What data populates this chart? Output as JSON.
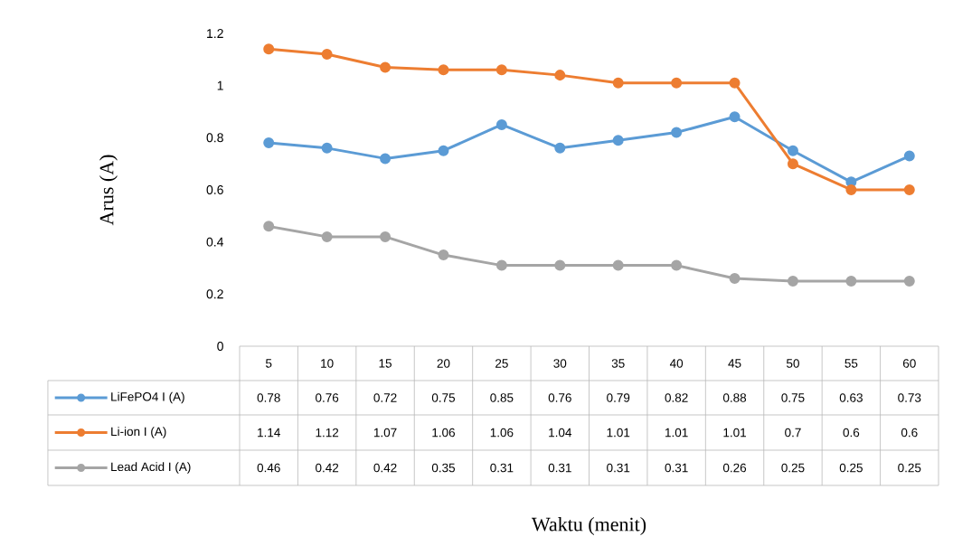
{
  "chart_data": {
    "type": "line",
    "annotations": [
      "Waktu (menit)"
    ],
    "ylabel": "Arus (A)",
    "categories": [
      "5",
      "10",
      "15",
      "20",
      "25",
      "30",
      "35",
      "40",
      "45",
      "50",
      "55",
      "60"
    ],
    "series": [
      {
        "name": "LiFePO4 I (A)",
        "color": "#5b9bd5",
        "values": [
          0.78,
          0.76,
          0.72,
          0.75,
          0.85,
          0.76,
          0.79,
          0.82,
          0.88,
          0.75,
          0.63,
          0.73
        ]
      },
      {
        "name": "Li-ion I (A)",
        "color": "#ed7d31",
        "values": [
          1.14,
          1.12,
          1.07,
          1.06,
          1.06,
          1.04,
          1.01,
          1.01,
          1.01,
          0.7,
          0.6,
          0.6
        ]
      },
      {
        "name": "Lead Acid I (A)",
        "color": "#a5a5a5",
        "values": [
          0.46,
          0.42,
          0.42,
          0.35,
          0.31,
          0.31,
          0.31,
          0.31,
          0.26,
          0.25,
          0.25,
          0.25
        ]
      }
    ],
    "ylim": [
      0,
      1.2
    ],
    "yticks": [
      0,
      0.2,
      0.4,
      0.6,
      0.8,
      1,
      1.2
    ],
    "marker": "circle",
    "legend": "bottom",
    "data_labels": true
  }
}
